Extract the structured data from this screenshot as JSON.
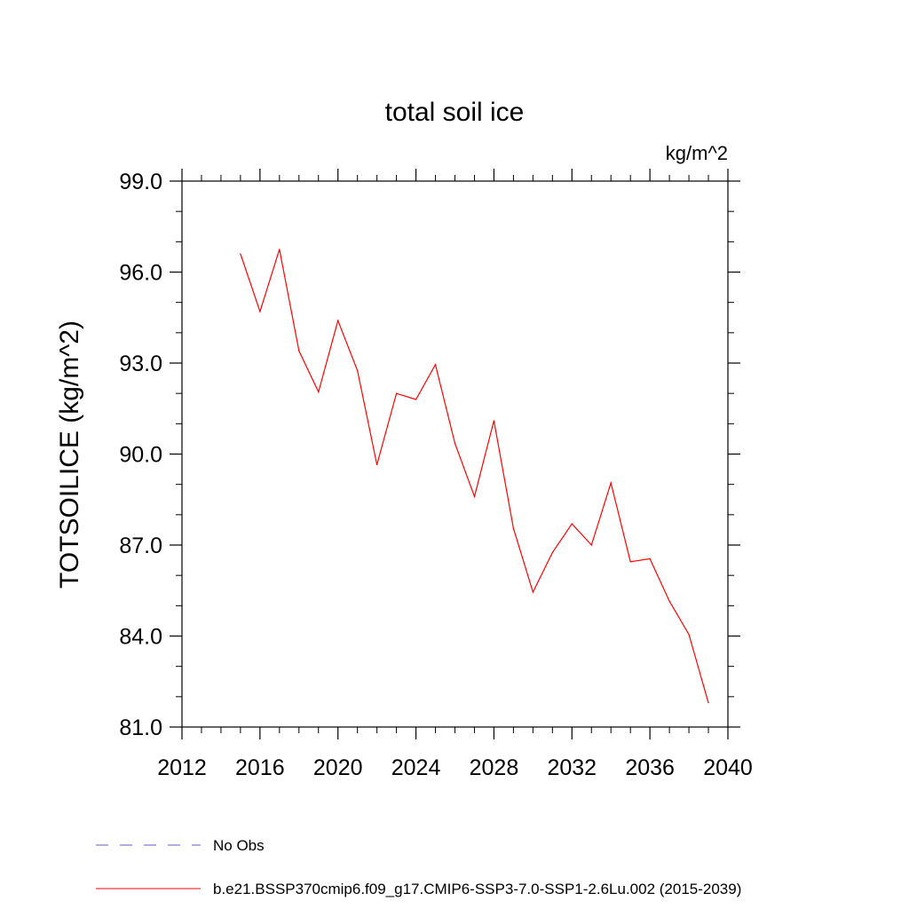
{
  "chart_data": {
    "type": "line",
    "title": "total soil ice",
    "units_label": "kg/m^2",
    "ylabel": "TOTSOILICE  (kg/m^2)",
    "xlabel": "",
    "xlim": [
      2012,
      2040
    ],
    "ylim": [
      81.0,
      99.0
    ],
    "x_ticks": [
      2012,
      2016,
      2020,
      2024,
      2028,
      2032,
      2036,
      2040
    ],
    "x_tick_labels": [
      "2012",
      "2016",
      "2020",
      "2024",
      "2028",
      "2032",
      "2036",
      "2040"
    ],
    "y_ticks": [
      81.0,
      84.0,
      87.0,
      90.0,
      93.0,
      96.0,
      99.0
    ],
    "y_tick_labels": [
      "81.0",
      "84.0",
      "87.0",
      "90.0",
      "93.0",
      "96.0",
      "99.0"
    ],
    "x_minor_step": 1,
    "y_minor_step": 1.0,
    "grid": false,
    "legend_position": "bottom-left",
    "series": [
      {
        "name": "b.e21.BSSP370cmip6.f09_g17.CMIP6-SSP3-7.0-SSP1-2.6Lu.002 (2015-2039)",
        "color": "#ff0000",
        "style": "solid",
        "x": [
          2015,
          2016,
          2017,
          2018,
          2019,
          2020,
          2021,
          2022,
          2023,
          2024,
          2025,
          2026,
          2027,
          2028,
          2029,
          2030,
          2031,
          2032,
          2033,
          2034,
          2035,
          2036,
          2037,
          2038,
          2039
        ],
        "values": [
          96.6,
          94.7,
          96.75,
          93.4,
          92.05,
          94.4,
          92.75,
          89.65,
          92.0,
          91.8,
          92.95,
          90.35,
          88.6,
          91.1,
          87.55,
          85.45,
          86.75,
          87.7,
          87.0,
          89.05,
          86.45,
          86.55,
          85.15,
          84.05,
          81.8
        ]
      }
    ],
    "legend": [
      {
        "label": "No Obs",
        "color": "#6a5acd",
        "style": "dashed"
      },
      {
        "label": "b.e21.BSSP370cmip6.f09_g17.CMIP6-SSP3-7.0-SSP1-2.6Lu.002 (2015-2039)",
        "color": "#ff0000",
        "style": "solid"
      }
    ]
  }
}
